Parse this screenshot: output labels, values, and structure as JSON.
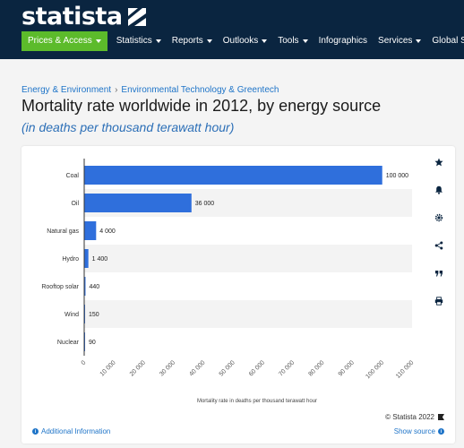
{
  "header": {
    "logo_text": "statista",
    "nav": [
      {
        "label": "Prices & Access",
        "dropdown": true,
        "primary": true
      },
      {
        "label": "Statistics",
        "dropdown": true
      },
      {
        "label": "Reports",
        "dropdown": true
      },
      {
        "label": "Outlooks",
        "dropdown": true
      },
      {
        "label": "Tools",
        "dropdown": true
      },
      {
        "label": "Infographics",
        "dropdown": false
      },
      {
        "label": "Services",
        "dropdown": true
      },
      {
        "label": "Global Surv",
        "dropdown": false
      }
    ],
    "colors": {
      "bar": "#0a2540",
      "primary": "#5cbb2b"
    }
  },
  "breadcrumb": {
    "items": [
      "Energy & Environment",
      "Environmental Technology & Greentech"
    ],
    "separator": "›"
  },
  "page": {
    "title": "Mortality rate worldwide in 2012, by energy source",
    "subtitle": "(in deaths per thousand terawatt hour)"
  },
  "sidebar_icons": [
    "star-icon",
    "bell-icon",
    "gear-icon",
    "share-icon",
    "quote-icon",
    "print-icon"
  ],
  "footer": {
    "copyright": "© Statista 2022",
    "additional_info": "Additional Information",
    "show_source": "Show source"
  },
  "chart_data": {
    "type": "bar",
    "orientation": "horizontal",
    "categories": [
      "Coal",
      "Oil",
      "Natural gas",
      "Hydro",
      "Rooftop solar",
      "Wind",
      "Nuclear"
    ],
    "values": [
      100000,
      36000,
      4000,
      1400,
      440,
      150,
      90
    ],
    "value_labels": [
      "100 000",
      "36 000",
      "4 000",
      "1 400",
      "440",
      "150",
      "90"
    ],
    "xlim": [
      0,
      110000
    ],
    "xticks": [
      0,
      10000,
      20000,
      30000,
      40000,
      50000,
      60000,
      70000,
      80000,
      90000,
      100000,
      110000
    ],
    "xtick_labels": [
      "0",
      "10 000",
      "20 000",
      "30 000",
      "40 000",
      "50 000",
      "60 000",
      "70 000",
      "80 000",
      "90 000",
      "100 000",
      "110 000"
    ],
    "xlabel": "Mortality rate in deaths per thousand terawatt hour",
    "bar_color": "#2f6fdc",
    "grid": false,
    "alternating_row_bands": true
  }
}
